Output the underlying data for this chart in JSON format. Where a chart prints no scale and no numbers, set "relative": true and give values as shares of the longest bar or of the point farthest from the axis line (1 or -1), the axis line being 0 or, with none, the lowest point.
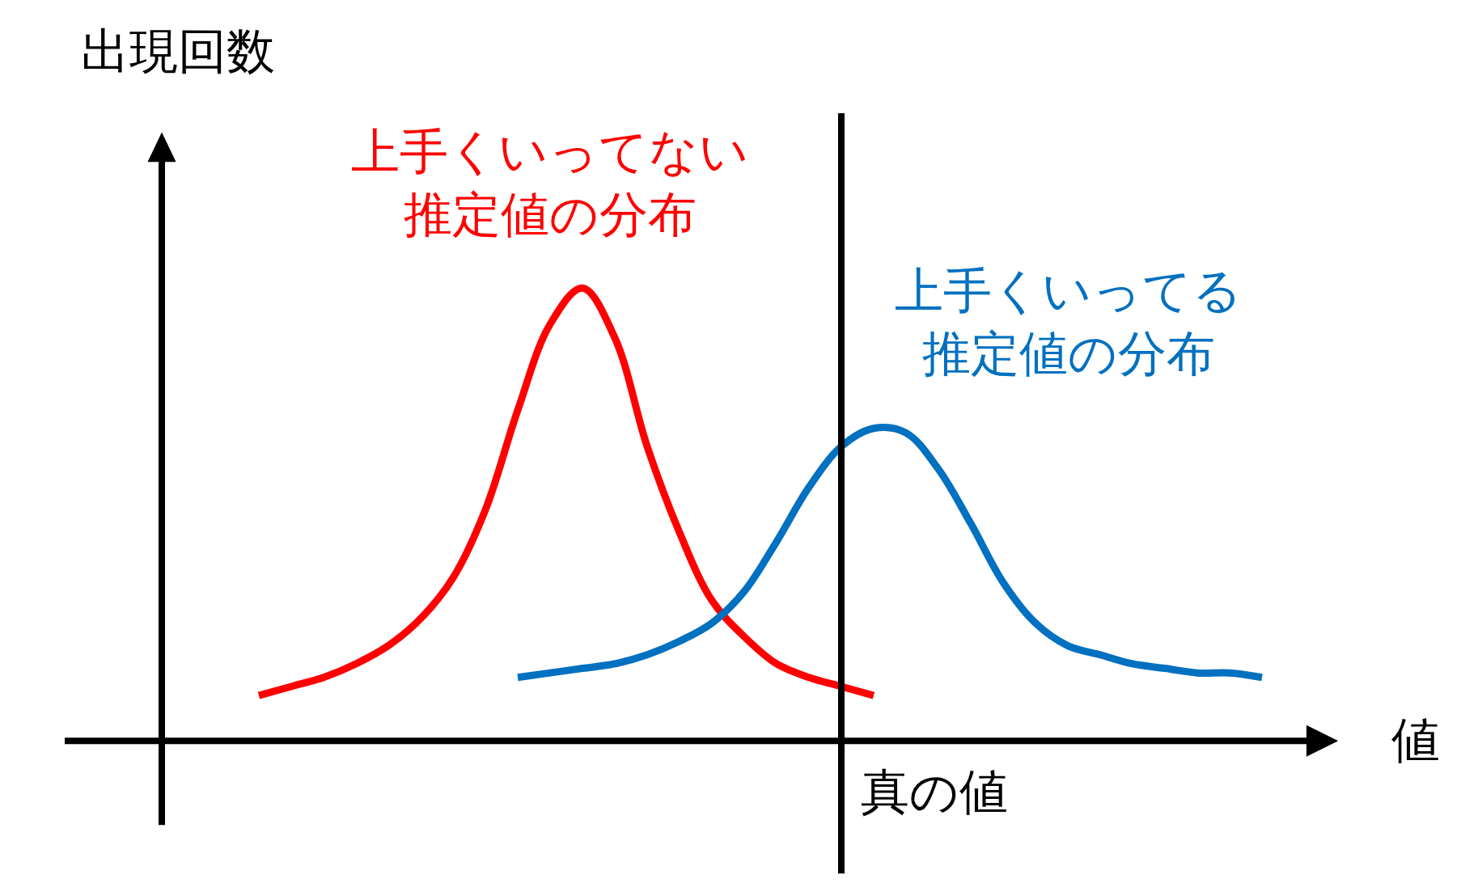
{
  "chart_data": {
    "type": "line",
    "relative": true,
    "xlabel": "値",
    "ylabel": "出現回数",
    "categories": [
      null,
      null,
      null,
      null,
      null,
      null,
      null,
      null,
      null,
      null,
      null,
      null,
      null,
      null,
      null,
      null,
      null,
      null,
      null,
      null,
      null,
      null,
      null,
      null,
      null,
      null,
      null,
      null,
      null,
      null,
      null,
      null,
      null,
      null,
      null,
      null,
      null,
      null,
      null,
      null
    ],
    "series": [
      {
        "name": "上手くいってない推定値の分布",
        "color": "#ff0000",
        "values": [
          null,
          null,
          null,
          null,
          null,
          null,
          0.1,
          0.12,
          0.14,
          0.17,
          0.21,
          0.27,
          0.36,
          0.51,
          0.73,
          0.92,
          1.0,
          0.89,
          0.65,
          0.46,
          0.31,
          0.23,
          0.17,
          0.14,
          0.12,
          0.1,
          null,
          null,
          null,
          null,
          null,
          null,
          null,
          null,
          null,
          null,
          null,
          null,
          null,
          null
        ]
      },
      {
        "name": "上手くいってる推定値の分布",
        "color": "#0070c0",
        "values": [
          null,
          null,
          null,
          null,
          null,
          null,
          null,
          null,
          null,
          null,
          null,
          null,
          null,
          null,
          0.14,
          0.15,
          0.16,
          0.17,
          0.19,
          0.22,
          0.26,
          0.33,
          0.44,
          0.56,
          0.65,
          0.69,
          0.68,
          0.6,
          0.48,
          0.35,
          0.26,
          0.21,
          0.19,
          0.17,
          0.16,
          0.15,
          0.15,
          0.14,
          null,
          null
        ]
      }
    ],
    "annotations": [
      "真の値"
    ]
  }
}
